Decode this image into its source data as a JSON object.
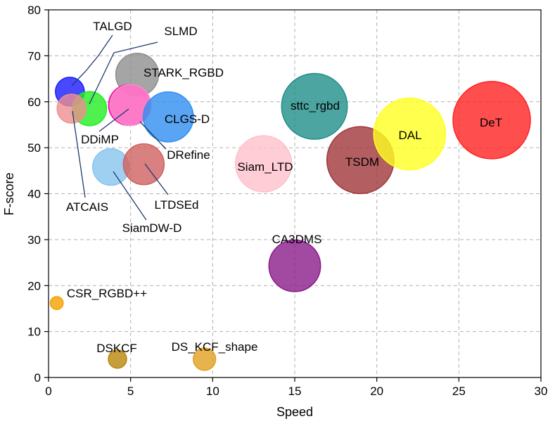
{
  "chart_data": {
    "type": "scatter",
    "title": "",
    "xlabel": "Speed",
    "ylabel": "F-score",
    "xlim": [
      0,
      30
    ],
    "ylim": [
      0,
      80
    ],
    "xticks": [
      0,
      5,
      10,
      15,
      20,
      25,
      30
    ],
    "yticks": [
      0,
      10,
      20,
      30,
      40,
      50,
      60,
      70,
      80
    ],
    "grid": true,
    "points": [
      {
        "name": "TALGD",
        "x": 1.3,
        "y": 62.2,
        "size": 0.5,
        "color": "#1a1aff"
      },
      {
        "name": "SLMD",
        "x": 2.5,
        "y": 58.5,
        "size": 0.7,
        "color": "#22ee22"
      },
      {
        "name": "ATCAIS",
        "x": 1.4,
        "y": 58.5,
        "size": 0.5,
        "color": "#ef8f8f"
      },
      {
        "name": "STARK_RGBD",
        "x": 5.4,
        "y": 65.9,
        "size": 1.1,
        "color": "#8f8f8f"
      },
      {
        "name": "DDiMP",
        "x": 4.9,
        "y": 59.3,
        "size": 1.0,
        "color": "#ee11aa"
      },
      {
        "name": "DRefine",
        "x": 5.0,
        "y": 59.3,
        "size": 1.0,
        "color": "#ff88cc"
      },
      {
        "name": "CLGS-D",
        "x": 7.3,
        "y": 56.7,
        "size": 1.5,
        "color": "#2f8ff0"
      },
      {
        "name": "SiamDW-D",
        "x": 3.8,
        "y": 45.8,
        "size": 0.8,
        "color": "#88c4ee"
      },
      {
        "name": "LTDSEd",
        "x": 5.8,
        "y": 46.4,
        "size": 1.0,
        "color": "#d06060"
      },
      {
        "name": "CSR_RGBD++",
        "x": 0.5,
        "y": 16.2,
        "size": 0.1,
        "color": "#f5a000"
      },
      {
        "name": "DSKCF",
        "x": 4.2,
        "y": 4.0,
        "size": 0.2,
        "color": "#b8860b"
      },
      {
        "name": "DS_KCF_shape",
        "x": 9.5,
        "y": 4.0,
        "size": 0.3,
        "color": "#e0a020"
      },
      {
        "name": "Siam_LTD",
        "x": 13.1,
        "y": 46.5,
        "size": 1.9,
        "color": "#ffc0cb"
      },
      {
        "name": "sttc_rgbd",
        "x": 16.2,
        "y": 59.0,
        "size": 2.6,
        "color": "#1f8f8a"
      },
      {
        "name": "TSDM",
        "x": 19.0,
        "y": 47.3,
        "size": 2.7,
        "color": "#a0373b"
      },
      {
        "name": "CA3DMS",
        "x": 15.0,
        "y": 24.3,
        "size": 1.6,
        "color": "#8b1c8b"
      },
      {
        "name": "DAL",
        "x": 22.0,
        "y": 53.0,
        "size": 3.1,
        "color": "#ffff22"
      },
      {
        "name": "DeT",
        "x": 27.0,
        "y": 56.0,
        "size": 3.6,
        "color": "#ff2222"
      }
    ]
  }
}
